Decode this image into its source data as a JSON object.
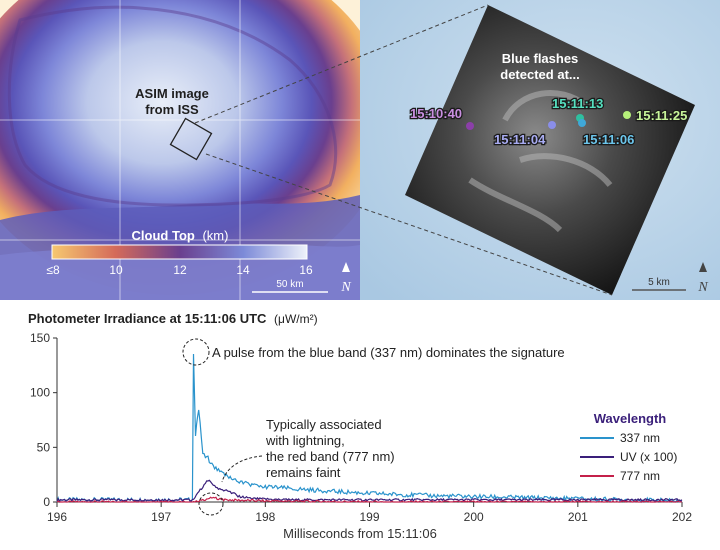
{
  "map_left": {
    "annotation": [
      "ASIM image",
      "from ISS"
    ],
    "colorbar_title": "Cloud Top",
    "colorbar_unit": "(km)",
    "colorbar_ticks": [
      "≤8",
      "10",
      "12",
      "14",
      "16"
    ],
    "scale_label": "50 km",
    "north_letter": "N"
  },
  "map_right": {
    "annotation": [
      "Blue flashes",
      "detected at..."
    ],
    "scale_label": "5 km",
    "north_letter": "N",
    "flashes": [
      {
        "time": "15:10:40",
        "color": "#8b3fa8"
      },
      {
        "time": "15:11:04",
        "color": "#8a8ee8"
      },
      {
        "time": "15:11:13",
        "color": "#2fbf9f"
      },
      {
        "time": "15:11:06",
        "color": "#3fa8d8"
      },
      {
        "time": "15:11:25",
        "color": "#b6f07a"
      }
    ]
  },
  "chart_data": {
    "type": "line",
    "title": "Photometer Irradiance at 15:11:06 UTC",
    "title_unit": "(μW/m²)",
    "xlabel": "Milliseconds from 15:11:06",
    "ylabel": "",
    "xlim": [
      196,
      202
    ],
    "ylim": [
      0,
      150
    ],
    "xticks": [
      "196",
      "197",
      "198",
      "199",
      "200",
      "201",
      "202"
    ],
    "yticks": [
      "0",
      "50",
      "100",
      "150"
    ],
    "legend_title": "Wavelength",
    "series": [
      {
        "name": "337 nm",
        "color": "#2a93cc",
        "x": [
          196,
          196.5,
          197,
          197.3,
          197.31,
          197.33,
          197.36,
          197.4,
          197.45,
          197.5,
          197.6,
          197.7,
          197.8,
          198,
          198.3,
          198.6,
          199,
          199.5,
          200,
          200.5,
          201,
          201.5,
          202
        ],
        "y": [
          2,
          2,
          2,
          2,
          135,
          62,
          85,
          45,
          40,
          32,
          25,
          20,
          17,
          14,
          12,
          10,
          8,
          6,
          5,
          4,
          3,
          2,
          1
        ]
      },
      {
        "name": "UV (x 100)",
        "color": "#3a1f7a",
        "x": [
          196,
          196.5,
          197,
          197.3,
          197.35,
          197.45,
          197.55,
          197.65,
          197.75,
          197.9,
          198.2,
          199,
          200,
          201,
          202
        ],
        "y": [
          2,
          2,
          2,
          2,
          8,
          20,
          12,
          10,
          5,
          3,
          2,
          2,
          2,
          2,
          2
        ]
      },
      {
        "name": "777 nm",
        "color": "#c4204a",
        "x": [
          196,
          197,
          197.3,
          197.4,
          197.5,
          197.6,
          198,
          199,
          200,
          201,
          202
        ],
        "y": [
          0,
          0,
          0,
          2,
          4,
          2,
          1,
          0,
          0,
          0,
          0
        ]
      }
    ],
    "annotations": [
      "A pulse from the blue band (337 nm) dominates the signature",
      "Typically associated",
      "with lightning,",
      "the red band (777 nm)",
      "remains faint"
    ]
  }
}
